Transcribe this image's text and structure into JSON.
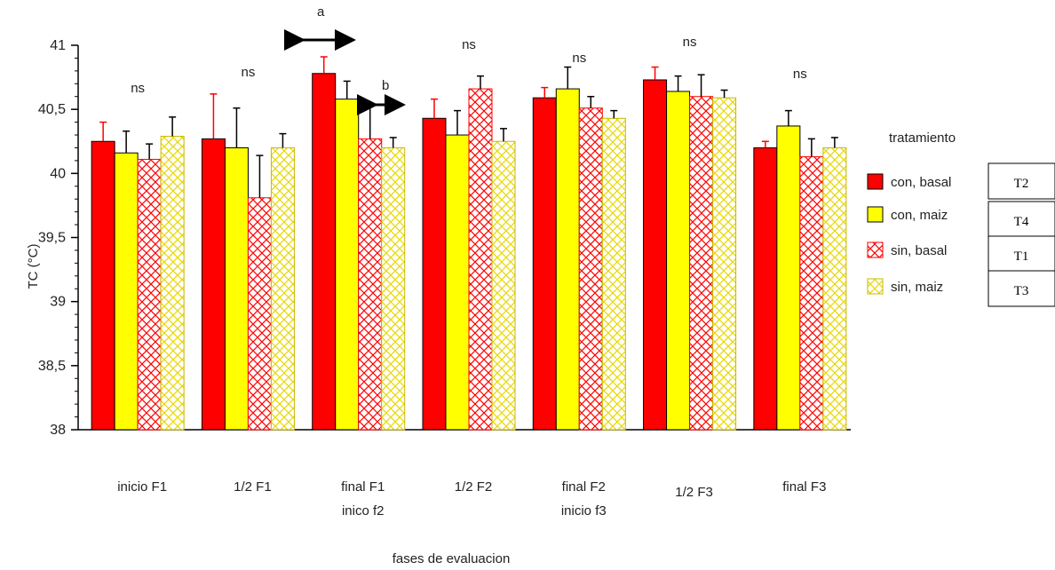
{
  "chart_data": {
    "type": "bar",
    "ylabel": "TC (°C)",
    "xlabel": "fases de evaluacion",
    "ylim": [
      38,
      41
    ],
    "yticks": [
      "38",
      "38,5",
      "39",
      "39,5",
      "40",
      "40,5",
      "41"
    ],
    "tick_values": [
      38,
      38.5,
      39,
      39.5,
      40,
      40.5,
      41
    ],
    "categories": [
      [
        "inicio F1"
      ],
      [
        "1/2 F1"
      ],
      [
        "final F1",
        "inico f2"
      ],
      [
        "1/2 F2"
      ],
      [
        "final F2",
        "inicio f3"
      ],
      [
        "1/2 F3"
      ],
      [
        "final F3"
      ]
    ],
    "series": [
      {
        "name": "con, basal",
        "pattern": "solid",
        "color": "#ff0000",
        "values": [
          40.25,
          40.27,
          40.78,
          40.43,
          40.59,
          40.73,
          40.2
        ],
        "errors": [
          0.15,
          0.35,
          0.13,
          0.15,
          0.08,
          0.1,
          0.05
        ]
      },
      {
        "name": "con, maiz",
        "pattern": "solid",
        "color": "#ffff00",
        "values": [
          40.16,
          40.2,
          40.58,
          40.3,
          40.66,
          40.64,
          40.37
        ],
        "errors": [
          0.17,
          0.31,
          0.14,
          0.19,
          0.17,
          0.12,
          0.12
        ]
      },
      {
        "name": "sin, basal",
        "pattern": "crosshatch",
        "color": "#ff0000",
        "values": [
          40.11,
          39.81,
          40.27,
          40.66,
          40.51,
          40.6,
          40.13
        ],
        "errors": [
          0.12,
          0.33,
          0.26,
          0.1,
          0.09,
          0.17,
          0.14
        ]
      },
      {
        "name": "sin, maiz",
        "pattern": "crosshatch",
        "color": "#ffff00",
        "values": [
          40.29,
          40.2,
          40.2,
          40.25,
          40.43,
          40.59,
          40.2
        ],
        "errors": [
          0.15,
          0.11,
          0.08,
          0.1,
          0.06,
          0.06,
          0.08
        ]
      }
    ],
    "annotations": {
      "significance": [
        "ns",
        "ns",
        "",
        "ns",
        "ns",
        "ns",
        "ns"
      ],
      "letter_a": "a",
      "letter_b": "b"
    },
    "legend": {
      "title": "tratamiento",
      "position": "right",
      "codes": [
        "T2",
        "T4",
        "T1",
        "T3"
      ]
    },
    "grid": false
  }
}
